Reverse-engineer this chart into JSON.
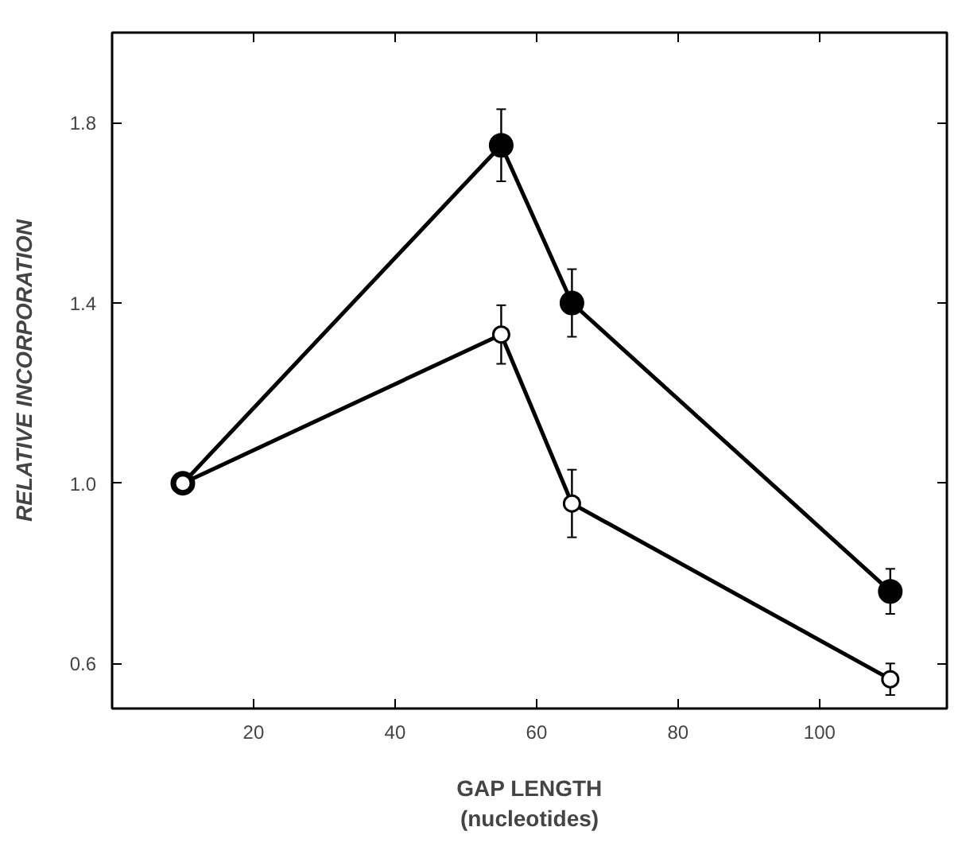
{
  "chart_data": {
    "type": "line",
    "xlabel": "GAP LENGTH\n(nucleotides)",
    "ylabel": "RELATIVE INCORPORATION",
    "xlim": [
      0,
      118
    ],
    "xticks": [
      20,
      40,
      60,
      80,
      100
    ],
    "ylim": [
      0.5,
      2.0
    ],
    "yticks": [
      0.6,
      {
        "value": 1.0,
        "label": "1.0"
      },
      1.4,
      1.8
    ],
    "grid": false,
    "marker": "circle",
    "line_style": "solid",
    "series": [
      {
        "color": "#000000",
        "x": [
          10,
          55,
          65,
          110
        ],
        "values": [
          1.0,
          1.75,
          1.4,
          0.76
        ],
        "errors": [
          null,
          0.08,
          0.075,
          0.05
        ]
      },
      {
        "color": "#000000",
        "x": [
          10,
          55,
          65,
          110
        ],
        "values": [
          1.0,
          1.33,
          0.955,
          0.565
        ],
        "errors": [
          null,
          0.065,
          0.075,
          0.035
        ]
      }
    ]
  }
}
